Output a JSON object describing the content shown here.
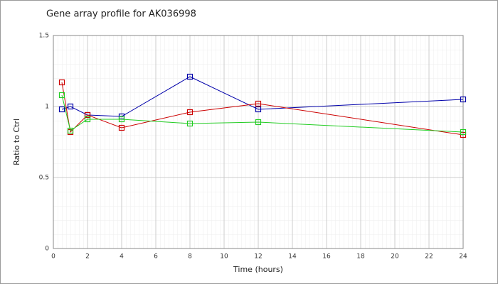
{
  "chart_data": {
    "type": "line",
    "title": "Gene array profile for AK036998",
    "x_label": "Time (hours)",
    "y_label": "Ratio to Ctrl",
    "x": [
      0.5,
      1,
      2,
      4,
      8,
      12,
      24
    ],
    "series": [
      {
        "color": "#0000aa",
        "values": [
          0.98,
          1.0,
          0.94,
          0.93,
          1.21,
          0.98,
          1.05
        ]
      },
      {
        "color": "#cc0000",
        "values": [
          1.17,
          0.82,
          0.94,
          0.85,
          0.96,
          1.02,
          0.8
        ]
      },
      {
        "color": "#22cc22",
        "values": [
          1.08,
          0.83,
          0.91,
          0.91,
          0.88,
          0.89,
          0.82
        ]
      }
    ],
    "xlim": [
      0,
      24
    ],
    "xticks": [
      0,
      2,
      4,
      6,
      8,
      10,
      12,
      14,
      16,
      18,
      20,
      22,
      24
    ],
    "ylim": [
      0,
      1.5
    ],
    "yticks": [
      0,
      0.5,
      1,
      1.5
    ],
    "grid": true
  }
}
